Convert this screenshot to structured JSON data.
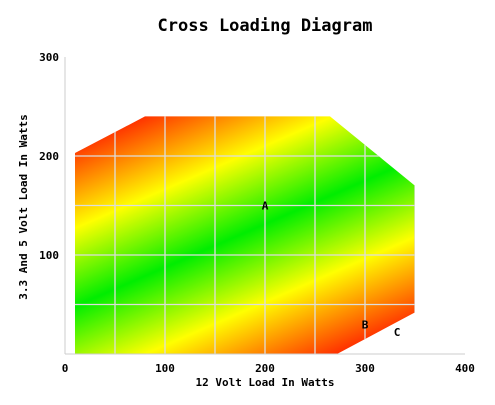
{
  "chart_data": {
    "type": "area",
    "title": "Cross Loading Diagram",
    "xlabel": "12 Volt Load In Watts",
    "ylabel": "3.3 And 5 Volt Load In Watts",
    "xlim": [
      0,
      400
    ],
    "ylim": [
      0,
      300
    ],
    "x_ticks": [
      "0",
      "100",
      "200",
      "300",
      "400"
    ],
    "y_ticks": [
      "300",
      "200",
      "100"
    ],
    "grid": true,
    "region": {
      "name": "",
      "polygon": [
        [
          10,
          0
        ],
        [
          10,
          203
        ],
        [
          80,
          240
        ],
        [
          265,
          240
        ],
        [
          350,
          170
        ],
        [
          350,
          42
        ],
        [
          272,
          0
        ]
      ],
      "gradient_colors": [
        "#ff3300",
        "#ffff00",
        "#00ee00",
        "#ffff00",
        "#ff3300"
      ]
    },
    "points": [
      {
        "label": "A",
        "x": 200,
        "y": 150
      },
      {
        "label": "B",
        "x": 300,
        "y": 30
      },
      {
        "label": "C",
        "x": 332,
        "y": 22
      }
    ]
  }
}
